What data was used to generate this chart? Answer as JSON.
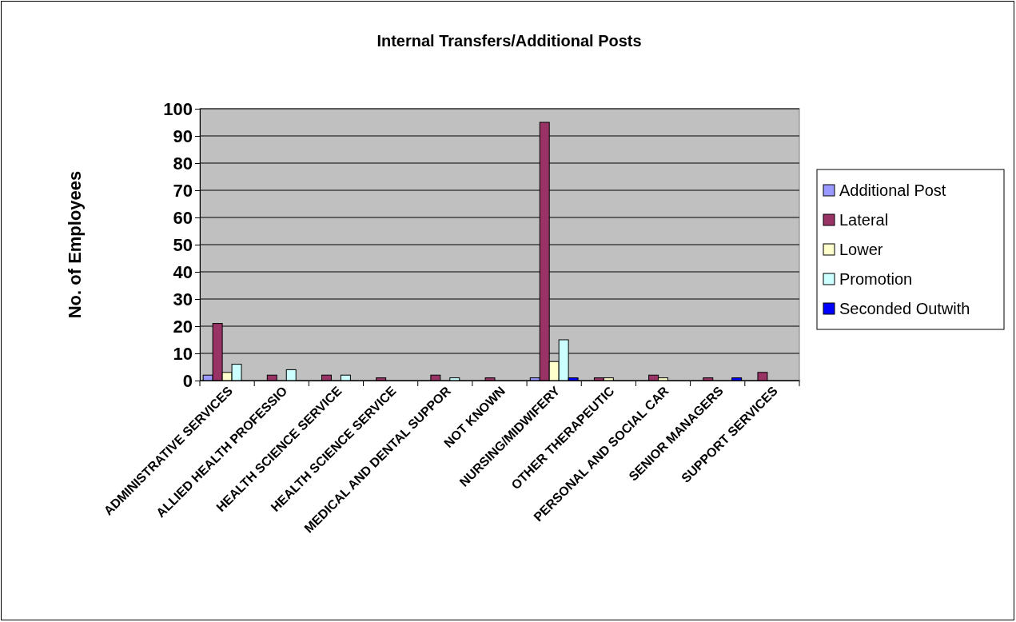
{
  "chart_data": {
    "type": "bar",
    "title": "Internal Transfers/Additional Posts",
    "ylabel": "No. of Employees",
    "categories": [
      "ADMINISTRATIVE SERVICES",
      "ALLIED HEALTH PROFESSIO",
      "HEALTH SCIENCE SERVICE",
      "HEALTH SCIENCE SERVICE",
      "MEDICAL AND DENTAL SUPPOR",
      "NOT KNOWN",
      "NURSING/MIDWIFERY",
      "OTHER THERAPEUTIC",
      "PERSONAL AND SOCIAL CAR",
      "SENIOR MANAGERS",
      "SUPPORT SERVICES"
    ],
    "series": [
      {
        "name": "Additional Post",
        "color": "#9999ff",
        "values": [
          2,
          null,
          null,
          null,
          null,
          null,
          1,
          null,
          null,
          null,
          null
        ]
      },
      {
        "name": "Lateral",
        "color": "#993366",
        "values": [
          21,
          2,
          2,
          1,
          2,
          1,
          95,
          1,
          2,
          1,
          3
        ]
      },
      {
        "name": "Lower",
        "color": "#ffffcc",
        "values": [
          3,
          null,
          null,
          null,
          null,
          null,
          7,
          1,
          1,
          null,
          null
        ]
      },
      {
        "name": "Promotion",
        "color": "#ccffff",
        "values": [
          6,
          4,
          2,
          null,
          1,
          null,
          15,
          null,
          null,
          null,
          null
        ]
      },
      {
        "name": "Seconded Outwith",
        "color": "#0000ff",
        "values": [
          null,
          null,
          null,
          null,
          null,
          null,
          1,
          null,
          null,
          1,
          null
        ]
      }
    ],
    "ylim": [
      0,
      100
    ],
    "yticks": [
      0,
      10,
      20,
      30,
      40,
      50,
      60,
      70,
      80,
      90,
      100
    ],
    "grid": "y",
    "legend": "right"
  }
}
